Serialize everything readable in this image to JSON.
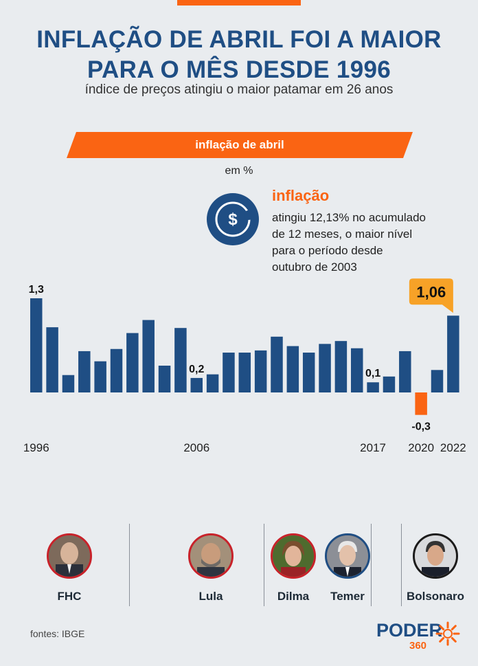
{
  "colors": {
    "navy": "#1f4e84",
    "orange": "#fa6413",
    "callout": "#f7a227",
    "text": "#1d2a36"
  },
  "title": {
    "line1": "INFLAÇÃO DE ABRIL FOI A MAIOR",
    "line2": "PARA O MÊS DESDE 1996"
  },
  "subtitle": "índice de preços atingiu o maior patamar em 26 anos",
  "banner": "inflação de abril",
  "unit": "em %",
  "info": {
    "icon": "dollar-coin-icon",
    "title": "inflação",
    "lines": [
      "atingiu 12,13% no acumulado",
      "de 12 meses, o maior nível",
      "para o período desde",
      "outubro de 2003"
    ]
  },
  "chart_data": {
    "type": "bar",
    "categories": [
      "1996",
      "1997",
      "1998",
      "1999",
      "2000",
      "2001",
      "2002",
      "2003",
      "2004",
      "2005",
      "2006",
      "2007",
      "2008",
      "2009",
      "2010",
      "2011",
      "2012",
      "2013",
      "2014",
      "2015",
      "2016",
      "2017",
      "2018",
      "2019",
      "2020",
      "2021",
      "2022"
    ],
    "values": [
      1.3,
      0.9,
      0.24,
      0.57,
      0.43,
      0.6,
      0.82,
      1.0,
      0.37,
      0.89,
      0.2,
      0.25,
      0.55,
      0.55,
      0.58,
      0.77,
      0.64,
      0.55,
      0.67,
      0.71,
      0.61,
      0.14,
      0.22,
      0.57,
      -0.31,
      0.31,
      1.06
    ],
    "labels": {
      "0": "1,3",
      "10": "0,2",
      "21": "0,1",
      "24": "-0,3"
    },
    "callout": {
      "index": 26,
      "text": "1,06"
    },
    "xticks": [
      {
        "index": 0,
        "label": "1996"
      },
      {
        "index": 10,
        "label": "2006"
      },
      {
        "index": 21,
        "label": "2017"
      },
      {
        "index": 24,
        "label": "2020"
      },
      {
        "index": 26,
        "label": "2022"
      }
    ],
    "ylim": [
      -0.35,
      1.38
    ],
    "xlabel": "",
    "ylabel": "",
    "grid": false,
    "legend": "none"
  },
  "presidents": [
    {
      "name": "FHC",
      "photo": "fhc-portrait"
    },
    {
      "name": "Lula",
      "photo": "lula-portrait"
    },
    {
      "name": "Dilma",
      "photo": "dilma-portrait"
    },
    {
      "name": "Temer",
      "photo": "temer-portrait"
    },
    {
      "name": "Bolsonaro",
      "photo": "bolsonaro-portrait"
    }
  ],
  "sources": "fontes: IBGE",
  "logo": {
    "word": "PODER",
    "number": "360"
  }
}
